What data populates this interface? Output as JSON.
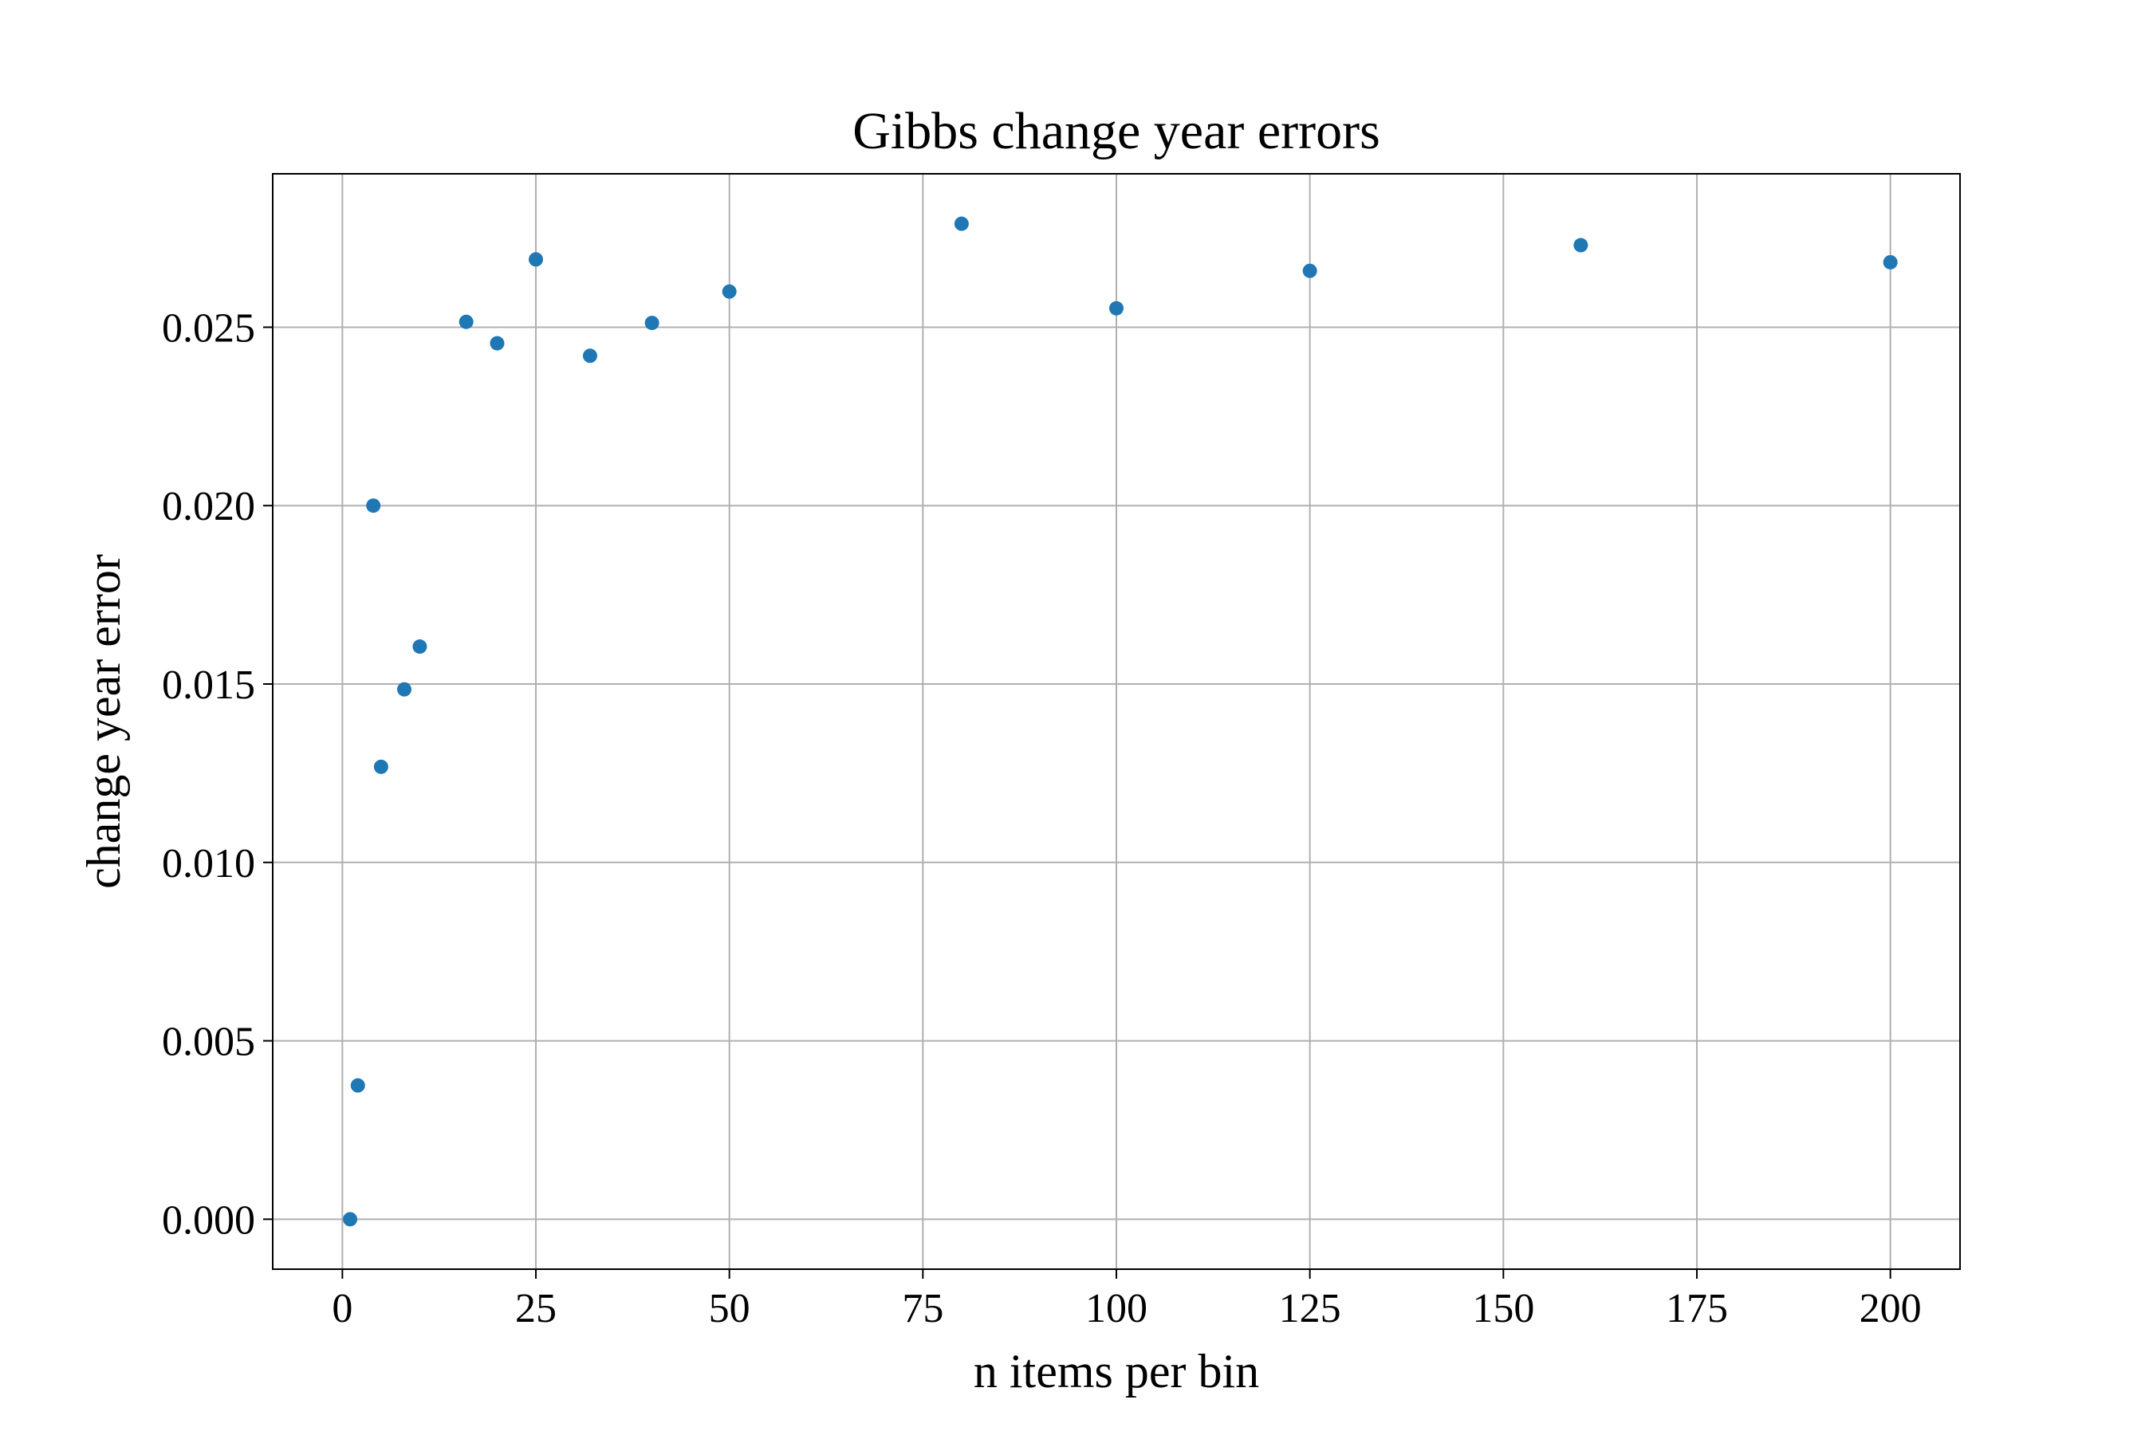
{
  "chart_data": {
    "type": "scatter",
    "title": "Gibbs change year errors",
    "xlabel": "n items per bin",
    "ylabel": "change year error",
    "xlim": [
      -9,
      209
    ],
    "ylim": [
      -0.0014,
      0.0293
    ],
    "x_ticks": [
      0,
      25,
      50,
      75,
      100,
      125,
      150,
      175,
      200
    ],
    "x_tick_labels": [
      "0",
      "25",
      "50",
      "75",
      "100",
      "125",
      "150",
      "175",
      "200"
    ],
    "y_ticks": [
      0.0,
      0.005,
      0.01,
      0.015,
      0.02,
      0.025
    ],
    "y_tick_labels": [
      "0.000",
      "0.005",
      "0.010",
      "0.015",
      "0.020",
      "0.025"
    ],
    "grid": true,
    "marker_color": "#1f77b4",
    "points": [
      {
        "x": 1,
        "y": 0.0
      },
      {
        "x": 2,
        "y": 0.00375
      },
      {
        "x": 4,
        "y": 0.02
      },
      {
        "x": 5,
        "y": 0.01268
      },
      {
        "x": 8,
        "y": 0.01485
      },
      {
        "x": 10,
        "y": 0.01605
      },
      {
        "x": 16,
        "y": 0.02515
      },
      {
        "x": 20,
        "y": 0.02455
      },
      {
        "x": 25,
        "y": 0.0269
      },
      {
        "x": 32,
        "y": 0.0242
      },
      {
        "x": 40,
        "y": 0.02512
      },
      {
        "x": 50,
        "y": 0.026
      },
      {
        "x": 80,
        "y": 0.0279
      },
      {
        "x": 100,
        "y": 0.02553
      },
      {
        "x": 125,
        "y": 0.02658
      },
      {
        "x": 160,
        "y": 0.0273
      },
      {
        "x": 200,
        "y": 0.02682
      }
    ]
  }
}
